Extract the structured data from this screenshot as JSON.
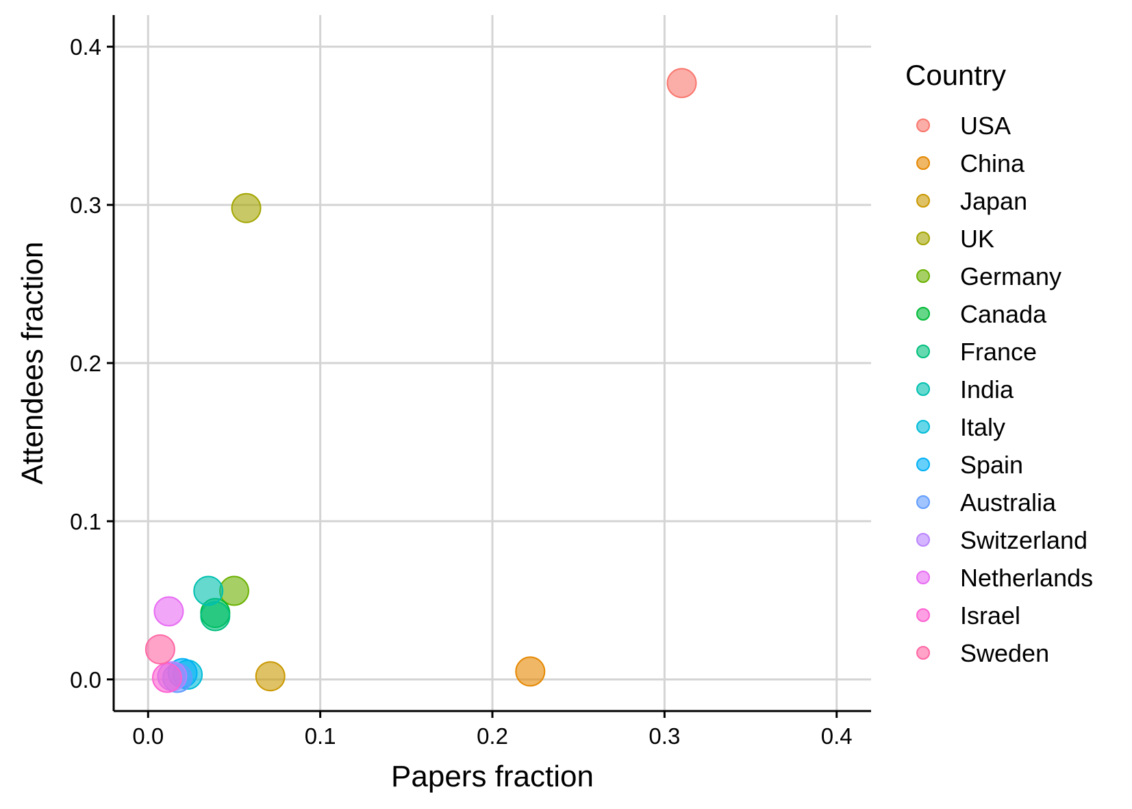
{
  "chart_data": {
    "type": "scatter",
    "xlabel": "Papers fraction",
    "ylabel": "Attendees fraction",
    "xlim": [
      -0.02,
      0.42
    ],
    "ylim": [
      -0.02,
      0.42
    ],
    "xticks": [
      0.0,
      0.1,
      0.2,
      0.3,
      0.4
    ],
    "yticks": [
      0.0,
      0.1,
      0.2,
      0.3,
      0.4
    ],
    "xtick_labels": [
      "0.0",
      "0.1",
      "0.2",
      "0.3",
      "0.4"
    ],
    "ytick_labels": [
      "0.0",
      "0.1",
      "0.2",
      "0.3",
      "0.4"
    ],
    "grid": true,
    "legend": {
      "title": "Country",
      "position": "right"
    },
    "series": [
      {
        "name": "USA",
        "color": "#F8766D",
        "x": 0.31,
        "y": 0.377
      },
      {
        "name": "China",
        "color": "#E58700",
        "x": 0.222,
        "y": 0.005
      },
      {
        "name": "Japan",
        "color": "#C99800",
        "x": 0.071,
        "y": 0.002
      },
      {
        "name": "UK",
        "color": "#A3A500",
        "x": 0.057,
        "y": 0.298
      },
      {
        "name": "Germany",
        "color": "#6BB100",
        "x": 0.05,
        "y": 0.056
      },
      {
        "name": "Canada",
        "color": "#00BA38",
        "x": 0.039,
        "y": 0.042
      },
      {
        "name": "France",
        "color": "#00BF7D",
        "x": 0.039,
        "y": 0.04
      },
      {
        "name": "India",
        "color": "#00C0AF",
        "x": 0.035,
        "y": 0.056
      },
      {
        "name": "Italy",
        "color": "#00BCD8",
        "x": 0.023,
        "y": 0.003
      },
      {
        "name": "Spain",
        "color": "#00B0F6",
        "x": 0.02,
        "y": 0.004
      },
      {
        "name": "Australia",
        "color": "#619CFF",
        "x": 0.017,
        "y": 0.001
      },
      {
        "name": "Switzerland",
        "color": "#B983FF",
        "x": 0.014,
        "y": 0.002
      },
      {
        "name": "Netherlands",
        "color": "#E76BF3",
        "x": 0.012,
        "y": 0.043
      },
      {
        "name": "Israel",
        "color": "#FD61D1",
        "x": 0.011,
        "y": 0.001
      },
      {
        "name": "Sweden",
        "color": "#FF67A4",
        "x": 0.007,
        "y": 0.019
      }
    ]
  }
}
